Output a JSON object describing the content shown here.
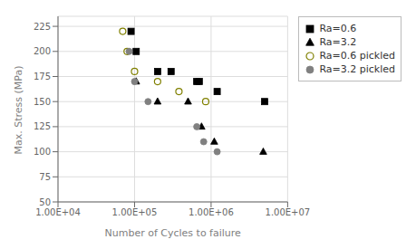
{
  "chart_data": {
    "type": "scatter",
    "title": "",
    "xlabel": "Number of Cycles to failure",
    "ylabel": "Max. Stress (MPa)",
    "log": "x",
    "xlim": [
      10000,
      10000000
    ],
    "xticks": [
      {
        "value": 10000,
        "label": "1.00E+04"
      },
      {
        "value": 100000,
        "label": "1.00E+05"
      },
      {
        "value": 1000000,
        "label": "1.00E+06"
      },
      {
        "value": 10000000,
        "label": "1.00E+07"
      }
    ],
    "ylim": [
      50,
      235
    ],
    "yticks": [
      50,
      75,
      100,
      125,
      150,
      175,
      200,
      225
    ],
    "grid": true,
    "legend": "right",
    "series": [
      {
        "name": "Ra=0.6",
        "marker": "square",
        "color": "#000000",
        "x": [
          90000,
          105000,
          200000,
          300000,
          650000,
          700000,
          1200000,
          5000000
        ],
        "values": [
          220,
          200,
          180,
          180,
          170,
          170,
          160,
          150
        ]
      },
      {
        "name": "Ra=3.2",
        "marker": "triangle",
        "color": "#000000",
        "x": [
          105000,
          200000,
          500000,
          750000,
          1100000,
          4800000
        ],
        "values": [
          170,
          150,
          150,
          125,
          110,
          100
        ]
      },
      {
        "name": "Ra=0.6 pickled",
        "marker": "open_circle",
        "color": "#808000",
        "x": [
          70000,
          80000,
          100000,
          200000,
          380000,
          850000
        ],
        "values": [
          220,
          200,
          180,
          170,
          160,
          150
        ]
      },
      {
        "name": "Ra=3.2 pickled",
        "marker": "circle",
        "color": "#808080",
        "x": [
          85000,
          100000,
          150000,
          650000,
          800000,
          1200000
        ],
        "values": [
          200,
          170,
          150,
          125,
          110,
          100
        ]
      }
    ]
  }
}
